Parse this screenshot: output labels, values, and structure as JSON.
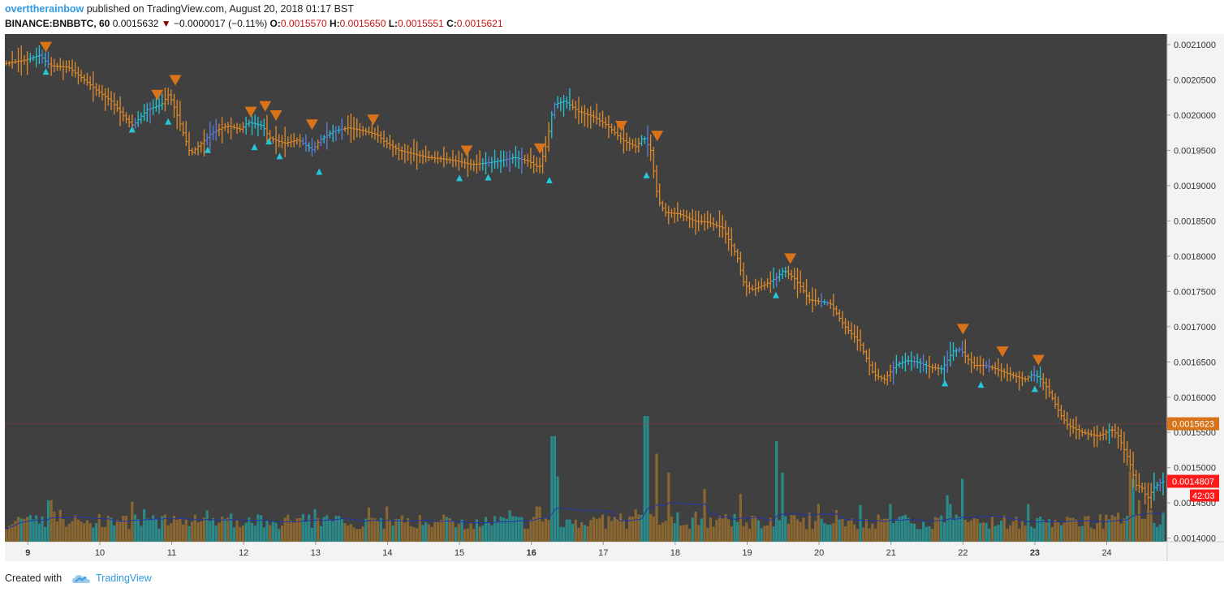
{
  "header": {
    "author": "overttherainbow",
    "published_text": "published on TradingView.com, August 20, 2018 01:17 BST",
    "symbol": "BINANCE:BNBBTC, 60",
    "last_price": "0.0015632",
    "change_arrow": "▼",
    "change": "−0.0000017 (−0.11%)",
    "o_label": "O:",
    "o_value": "0.0015570",
    "h_label": "H:",
    "h_value": "0.0015650",
    "l_label": "L:",
    "l_value": "0.0015551",
    "c_label": "C:",
    "c_value": "0.0015621"
  },
  "footer": {
    "created_with": "Created with",
    "brand": "TradingView",
    "logo_icon": "tradingview-cloud-icon"
  },
  "colors": {
    "background": "#404040",
    "up_bar": "#26c6da",
    "up_bar_alt": "#5b7fe0",
    "down_bar": "#e08a2a",
    "volume_up": "#2a8a8a",
    "volume_down": "#8a6630",
    "volume_ma": "#2233aa",
    "sell_marker": "#d9731a",
    "buy_marker": "#26c6da",
    "current_price_tag": "#d9731a",
    "live_price_tag": "#ff1a1a",
    "price_line": "#8b3a3a",
    "axis_text": "#333333",
    "axis_bg": "#f3f3f3"
  },
  "chart_data": {
    "type": "candlestick-ohlc",
    "symbol": "BINANCE:BNBBTC",
    "interval": "60",
    "y_axis": {
      "ticks": [
        "0.0021000",
        "0.0020500",
        "0.0020000",
        "0.0019500",
        "0.0019000",
        "0.0018500",
        "0.0018000",
        "0.0017500",
        "0.0017000",
        "0.0016500",
        "0.0016000",
        "0.0015500",
        "0.0015000",
        "0.0014500",
        "0.0014000"
      ],
      "ylim": [
        0.001395,
        0.002115
      ],
      "side": "right"
    },
    "x_axis": {
      "ticks": [
        {
          "label": "9",
          "bold": true,
          "day": 9
        },
        {
          "label": "10",
          "bold": false,
          "day": 10
        },
        {
          "label": "11",
          "bold": false,
          "day": 11
        },
        {
          "label": "12",
          "bold": false,
          "day": 12
        },
        {
          "label": "13",
          "bold": false,
          "day": 13
        },
        {
          "label": "14",
          "bold": false,
          "day": 14
        },
        {
          "label": "15",
          "bold": false,
          "day": 15
        },
        {
          "label": "16",
          "bold": true,
          "day": 16
        },
        {
          "label": "17",
          "bold": false,
          "day": 17
        },
        {
          "label": "18",
          "bold": false,
          "day": 18
        },
        {
          "label": "19",
          "bold": false,
          "day": 19
        },
        {
          "label": "20",
          "bold": false,
          "day": 20
        },
        {
          "label": "21",
          "bold": false,
          "day": 21
        },
        {
          "label": "22",
          "bold": false,
          "day": 22
        },
        {
          "label": "23",
          "bold": true,
          "day": 23
        },
        {
          "label": "24",
          "bold": false,
          "day": 24
        }
      ],
      "xlim_days": [
        8.68,
        24.84
      ]
    },
    "price_path": [
      [
        8.7,
        0.002073
      ],
      [
        9.0,
        0.002078
      ],
      [
        9.2,
        0.002085
      ],
      [
        9.35,
        0.00207
      ],
      [
        9.6,
        0.002068
      ],
      [
        9.8,
        0.002052
      ],
      [
        10.0,
        0.002035
      ],
      [
        10.2,
        0.00202
      ],
      [
        10.4,
        0.001995
      ],
      [
        10.5,
        0.001985
      ],
      [
        10.7,
        0.002008
      ],
      [
        10.9,
        0.002015
      ],
      [
        11.0,
        0.00203
      ],
      [
        11.1,
        0.002005
      ],
      [
        11.2,
        0.001975
      ],
      [
        11.3,
        0.001945
      ],
      [
        11.45,
        0.00196
      ],
      [
        11.6,
        0.001975
      ],
      [
        11.8,
        0.001985
      ],
      [
        12.0,
        0.00198
      ],
      [
        12.1,
        0.00199
      ],
      [
        12.3,
        0.001985
      ],
      [
        12.4,
        0.001968
      ],
      [
        12.6,
        0.00196
      ],
      [
        12.8,
        0.001965
      ],
      [
        13.0,
        0.00195
      ],
      [
        13.1,
        0.001965
      ],
      [
        13.3,
        0.001978
      ],
      [
        13.5,
        0.001982
      ],
      [
        13.7,
        0.001978
      ],
      [
        13.9,
        0.001972
      ],
      [
        14.0,
        0.001962
      ],
      [
        14.2,
        0.00195
      ],
      [
        14.4,
        0.001945
      ],
      [
        14.6,
        0.00194
      ],
      [
        14.8,
        0.001938
      ],
      [
        15.0,
        0.001935
      ],
      [
        15.2,
        0.00193
      ],
      [
        15.4,
        0.001932
      ],
      [
        15.6,
        0.001935
      ],
      [
        15.8,
        0.00194
      ],
      [
        16.0,
        0.001935
      ],
      [
        16.15,
        0.001925
      ],
      [
        16.25,
        0.001958
      ],
      [
        16.35,
        0.002015
      ],
      [
        16.5,
        0.00202
      ],
      [
        16.7,
        0.002005
      ],
      [
        16.9,
        0.001998
      ],
      [
        17.1,
        0.001985
      ],
      [
        17.3,
        0.001965
      ],
      [
        17.5,
        0.001955
      ],
      [
        17.6,
        0.00197
      ],
      [
        17.7,
        0.00195
      ],
      [
        17.8,
        0.00188
      ],
      [
        17.9,
        0.001862
      ],
      [
        18.1,
        0.00186
      ],
      [
        18.3,
        0.00185
      ],
      [
        18.5,
        0.001848
      ],
      [
        18.7,
        0.00184
      ],
      [
        18.9,
        0.0018
      ],
      [
        19.0,
        0.00176
      ],
      [
        19.1,
        0.001752
      ],
      [
        19.3,
        0.00176
      ],
      [
        19.45,
        0.00177
      ],
      [
        19.55,
        0.00178
      ],
      [
        19.7,
        0.001768
      ],
      [
        19.8,
        0.001755
      ],
      [
        19.9,
        0.001738
      ],
      [
        20.1,
        0.001735
      ],
      [
        20.2,
        0.001732
      ],
      [
        20.4,
        0.0017
      ],
      [
        20.6,
        0.001678
      ],
      [
        20.7,
        0.001655
      ],
      [
        20.8,
        0.001632
      ],
      [
        20.95,
        0.001625
      ],
      [
        21.1,
        0.001645
      ],
      [
        21.25,
        0.001652
      ],
      [
        21.4,
        0.00165
      ],
      [
        21.6,
        0.001642
      ],
      [
        21.75,
        0.00164
      ],
      [
        21.9,
        0.001665
      ],
      [
        22.0,
        0.001668
      ],
      [
        22.1,
        0.001655
      ],
      [
        22.2,
        0.001645
      ],
      [
        22.35,
        0.001645
      ],
      [
        22.5,
        0.00164
      ],
      [
        22.7,
        0.001632
      ],
      [
        22.9,
        0.001625
      ],
      [
        23.0,
        0.001632
      ],
      [
        23.1,
        0.001628
      ],
      [
        23.2,
        0.001615
      ],
      [
        23.3,
        0.001595
      ],
      [
        23.4,
        0.001575
      ],
      [
        23.5,
        0.00156
      ],
      [
        23.7,
        0.00155
      ],
      [
        23.9,
        0.001545
      ],
      [
        24.0,
        0.001548
      ],
      [
        24.1,
        0.001555
      ],
      [
        24.2,
        0.001545
      ],
      [
        24.35,
        0.00151
      ],
      [
        24.45,
        0.001475
      ],
      [
        24.55,
        0.00147
      ],
      [
        24.6,
        0.001455
      ],
      [
        24.7,
        0.001472
      ],
      [
        24.8,
        0.00148
      ]
    ],
    "up_segments": [
      [
        9.0,
        9.3
      ],
      [
        10.45,
        10.9
      ],
      [
        11.45,
        11.65
      ],
      [
        12.0,
        12.3
      ],
      [
        12.8,
        13.0
      ],
      [
        13.05,
        13.4
      ],
      [
        15.3,
        15.9
      ],
      [
        16.25,
        16.55
      ],
      [
        17.5,
        17.65
      ],
      [
        19.35,
        19.55
      ],
      [
        20.0,
        20.15
      ],
      [
        21.0,
        21.5
      ],
      [
        21.7,
        22.0
      ],
      [
        22.3,
        22.4
      ],
      [
        22.95,
        23.1
      ],
      [
        24.0,
        24.05
      ],
      [
        24.65,
        24.8
      ]
    ],
    "sell_signals": [
      [
        9.25,
        0.002097
      ],
      [
        10.8,
        0.002029
      ],
      [
        11.05,
        0.00205
      ],
      [
        12.1,
        0.002005
      ],
      [
        12.3,
        0.002013
      ],
      [
        12.45,
        0.002
      ],
      [
        12.95,
        0.001987
      ],
      [
        13.8,
        0.001994
      ],
      [
        15.1,
        0.00195
      ],
      [
        16.12,
        0.001953
      ],
      [
        17.25,
        0.001985
      ],
      [
        17.75,
        0.001971
      ],
      [
        19.6,
        0.001797
      ],
      [
        22.0,
        0.001697
      ],
      [
        22.55,
        0.001665
      ],
      [
        23.05,
        0.001653
      ]
    ],
    "buy_signals": [
      [
        9.25,
        0.002062
      ],
      [
        10.45,
        0.00198
      ],
      [
        10.95,
        0.001991
      ],
      [
        11.5,
        0.001951
      ],
      [
        12.15,
        0.001955
      ],
      [
        12.35,
        0.001963
      ],
      [
        12.5,
        0.001942
      ],
      [
        13.05,
        0.00192
      ],
      [
        15.0,
        0.001911
      ],
      [
        15.4,
        0.001912
      ],
      [
        16.25,
        0.001908
      ],
      [
        17.6,
        0.001915
      ],
      [
        19.4,
        0.001745
      ],
      [
        21.75,
        0.00162
      ],
      [
        22.25,
        0.001618
      ],
      [
        23.0,
        0.001612
      ]
    ],
    "current_price_label": "0.0015623",
    "current_price_value": 0.0015623,
    "live_price_label": "0.0014807",
    "live_price_value": 0.0014807,
    "countdown": "42:03",
    "volume_spikes": [
      [
        9.3,
        0.33
      ],
      [
        10.9,
        0.2
      ],
      [
        11.5,
        0.25
      ],
      [
        13.0,
        0.26
      ],
      [
        14.0,
        0.28
      ],
      [
        15.7,
        0.25
      ],
      [
        16.1,
        0.28
      ],
      [
        16.3,
        0.84
      ],
      [
        16.35,
        0.52
      ],
      [
        17.15,
        0.2
      ],
      [
        17.4,
        0.2
      ],
      [
        17.6,
        1.0
      ],
      [
        17.75,
        0.7
      ],
      [
        17.9,
        0.55
      ],
      [
        18.4,
        0.42
      ],
      [
        18.9,
        0.38
      ],
      [
        19.4,
        0.8
      ],
      [
        19.5,
        0.55
      ],
      [
        21.0,
        0.3
      ],
      [
        21.8,
        0.3
      ],
      [
        22.0,
        0.5
      ],
      [
        22.9,
        0.3
      ],
      [
        24.35,
        0.5
      ],
      [
        24.45,
        0.33
      ],
      [
        24.6,
        0.25
      ]
    ]
  }
}
